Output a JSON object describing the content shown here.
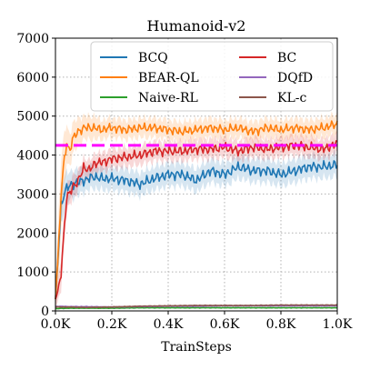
{
  "chart_data": {
    "type": "line",
    "title": "Humanoid-v2",
    "xlabel": "TrainSteps",
    "ylabel": "",
    "xlim": [
      0,
      1000
    ],
    "ylim": [
      0,
      7000
    ],
    "x_ticks": [
      0,
      200,
      400,
      600,
      800,
      1000
    ],
    "x_tick_labels": [
      "0.0K",
      "0.2K",
      "0.4K",
      "0.6K",
      "0.8K",
      "1.0K"
    ],
    "y_ticks": [
      0,
      1000,
      2000,
      3000,
      4000,
      5000,
      6000,
      7000
    ],
    "y_tick_labels": [
      "0",
      "1000",
      "2000",
      "3000",
      "4000",
      "5000",
      "6000",
      "7000"
    ],
    "grid": true,
    "grid_style": "dotted",
    "legend_placement": "top, two columns",
    "reference_line": {
      "value": 4250,
      "color": "#ff00ff",
      "style": "dashed"
    },
    "series": [
      {
        "name": "BCQ",
        "color": "#1f77b4",
        "x": [
          0,
          10,
          20,
          30,
          40,
          50,
          60,
          80,
          100,
          120,
          140,
          160,
          200,
          250,
          300,
          350,
          400,
          450,
          500,
          550,
          600,
          650,
          700,
          750,
          800,
          850,
          900,
          950,
          1000
        ],
        "values": [
          300,
          1500,
          2700,
          3000,
          3150,
          3200,
          3250,
          3300,
          3350,
          3400,
          3450,
          3400,
          3400,
          3350,
          3250,
          3400,
          3500,
          3500,
          3350,
          3600,
          3500,
          3700,
          3600,
          3600,
          3500,
          3600,
          3700,
          3700,
          3750
        ],
        "band": [
          300,
          500,
          500,
          450,
          400,
          350,
          350,
          350,
          300,
          300,
          300,
          300,
          300,
          300,
          300,
          300,
          300,
          300,
          300,
          300,
          300,
          300,
          300,
          300,
          300,
          300,
          300,
          300,
          300
        ]
      },
      {
        "name": "BEAR-QL",
        "color": "#ff7f0e",
        "x": [
          0,
          10,
          20,
          30,
          40,
          50,
          60,
          80,
          100,
          120,
          140,
          160,
          200,
          250,
          300,
          350,
          400,
          450,
          500,
          550,
          600,
          650,
          700,
          750,
          800,
          850,
          900,
          950,
          1000
        ],
        "values": [
          300,
          1500,
          3000,
          3800,
          4300,
          4100,
          4400,
          4600,
          4700,
          4700,
          4700,
          4650,
          4700,
          4650,
          4700,
          4700,
          4650,
          4600,
          4650,
          4700,
          4650,
          4700,
          4600,
          4700,
          4650,
          4700,
          4650,
          4700,
          4800
        ],
        "band": [
          300,
          800,
          900,
          700,
          500,
          400,
          400,
          350,
          300,
          300,
          300,
          250,
          250,
          250,
          250,
          250,
          250,
          250,
          250,
          250,
          250,
          250,
          250,
          250,
          250,
          250,
          250,
          250,
          250
        ]
      },
      {
        "name": "Naive-RL",
        "color": "#2ca02c",
        "x": [
          0,
          50,
          100,
          200,
          300,
          400,
          500,
          600,
          700,
          800,
          900,
          1000
        ],
        "values": [
          60,
          70,
          70,
          70,
          80,
          80,
          80,
          80,
          80,
          80,
          80,
          80
        ],
        "band": [
          20,
          20,
          20,
          20,
          20,
          20,
          20,
          20,
          20,
          20,
          20,
          20
        ]
      },
      {
        "name": "BC",
        "color": "#d62728",
        "x": [
          0,
          10,
          20,
          30,
          40,
          50,
          60,
          80,
          100,
          120,
          140,
          160,
          200,
          250,
          300,
          350,
          400,
          450,
          500,
          550,
          600,
          650,
          700,
          750,
          800,
          850,
          900,
          950,
          1000
        ],
        "values": [
          300,
          500,
          1000,
          2000,
          2900,
          3000,
          3200,
          3300,
          3700,
          3600,
          3800,
          3800,
          3900,
          3950,
          4000,
          4100,
          4100,
          4100,
          4150,
          4150,
          4200,
          4100,
          4200,
          4150,
          4200,
          4250,
          4200,
          4150,
          4300
        ],
        "band": [
          200,
          300,
          400,
          400,
          350,
          300,
          300,
          250,
          250,
          250,
          250,
          250,
          250,
          250,
          250,
          250,
          250,
          250,
          250,
          250,
          250,
          250,
          250,
          250,
          250,
          250,
          250,
          250,
          250
        ]
      },
      {
        "name": "DQfD",
        "color": "#9467bd",
        "x": [
          0,
          50,
          100,
          200,
          300,
          400,
          500,
          600,
          700,
          800,
          900,
          1000
        ],
        "values": [
          120,
          110,
          110,
          100,
          110,
          120,
          120,
          130,
          130,
          130,
          130,
          130
        ],
        "band": [
          20,
          20,
          20,
          20,
          20,
          20,
          20,
          20,
          20,
          20,
          20,
          20
        ]
      },
      {
        "name": "KL-c",
        "color": "#8c564b",
        "x": [
          0,
          50,
          100,
          200,
          300,
          400,
          500,
          600,
          700,
          800,
          900,
          1000
        ],
        "values": [
          100,
          100,
          90,
          100,
          120,
          130,
          140,
          140,
          140,
          150,
          150,
          150
        ],
        "band": [
          20,
          20,
          20,
          20,
          20,
          20,
          20,
          20,
          20,
          20,
          20,
          20
        ]
      }
    ]
  }
}
